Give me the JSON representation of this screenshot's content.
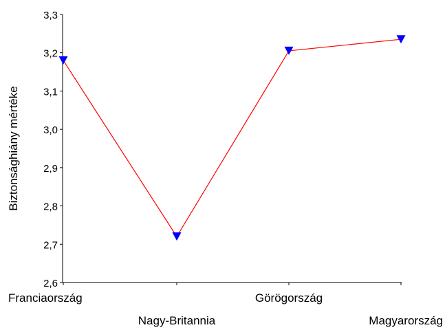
{
  "chart_data": {
    "type": "line",
    "title": "",
    "xlabel": "",
    "ylabel": "Biztonsághiány mértéke",
    "categories": [
      "Franciaország",
      "Nagy-Britannia",
      "Görögország",
      "Magyarország"
    ],
    "series": [
      {
        "values": [
          3.18,
          2.72,
          3.205,
          3.235
        ],
        "line_color": "#ff0000",
        "marker_color": "#0000ff",
        "marker": "triangle-down"
      }
    ],
    "ylim": [
      2.6,
      3.3
    ],
    "yticks": [
      2.6,
      2.7,
      2.8,
      2.9,
      3.0,
      3.1,
      3.2,
      3.3
    ],
    "ytick_labels": [
      "2,6",
      "2,7",
      "2,8",
      "2,9",
      "3,0",
      "3,1",
      "3,2",
      "3,3"
    ],
    "grid": false,
    "legend": "none"
  }
}
